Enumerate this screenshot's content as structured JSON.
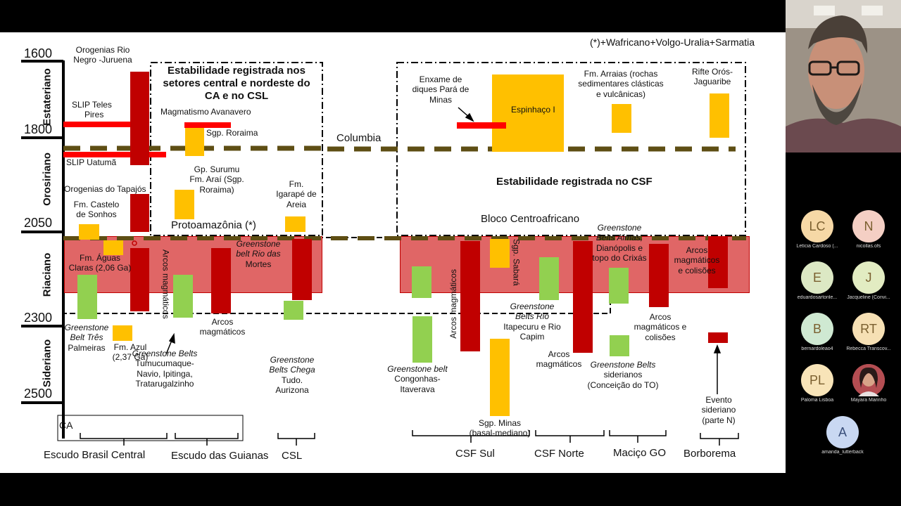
{
  "slide": {
    "ages": [
      "1600",
      "1800",
      "2050",
      "2300",
      "2500"
    ],
    "periods": [
      "Estateriano",
      "Orosiriano",
      "Riaciano",
      "Sideriano"
    ],
    "note": "(*)+Wafricano+Volgo-Uralia+Sarmatia",
    "stability_ca_line1": "Estabilidade registrada nos",
    "stability_ca_line2": "setores central e nordeste do",
    "stability_ca_line3": "CA e no CSL",
    "stability_csf": "Estabilidade registrada no CSF",
    "columbia": "Columbia",
    "protoamazonia": "Protoamazônia (*)",
    "bloco": "Bloco Centroafricano",
    "labels": {
      "orogenias_rio_negro": [
        "Orogenias Rio",
        "Negro -Juruena"
      ],
      "slip_teles_pires": [
        "SLIP Teles",
        "Pires"
      ],
      "magmatismo_avanavero": "Magmatismo Avanavero",
      "sgp_roraima": "Sgp. Roraima",
      "slip_uatuma": "SLIP Uatumã",
      "gp_surumu": [
        "Gp. Surumu",
        "Fm. Araí (Sgp.",
        "Roraima)"
      ],
      "orogenias_tapajos": "Orogenias do Tapajós",
      "fm_castelo": [
        "Fm. Castelo",
        "de Sonhos"
      ],
      "fm_igarape": [
        "Fm.",
        "Igarapé de",
        "Areia"
      ],
      "fm_aguas_claras": [
        "Fm. Águas",
        "Claras (2,06 Ga)"
      ],
      "arcos_magmaticos_vertical": "Arcos magmáticos",
      "greenstone_rio_mortes": [
        "Greenstone",
        "belt Rio das",
        "Mortes"
      ],
      "arcos_magmaticos_1": [
        "Arcos",
        "magmáticos"
      ],
      "greenstone_tres_palmeiras": [
        "Greenstone",
        "Belt Três",
        "Palmeiras"
      ],
      "fm_azul": [
        "Fm. Azul",
        "(2,37 Ga)"
      ],
      "greenstone_belts_tumucumaque": [
        "Greenstone Belts",
        "Tumucumaque-",
        "Navio, Ipitinga,",
        "Tratarugalzinho"
      ],
      "greenstone_chega_tudo": [
        "Greenstone",
        "Belts Chega",
        "Tudo.",
        "Aurizona"
      ],
      "enxame_diques": [
        "Enxame de",
        "diques Pará de",
        "Minas"
      ],
      "espinhaco": "Espinhaço I",
      "fm_arraias": [
        "Fm. Arraias (rochas",
        "sedimentares clásticas",
        "e vulcânicas)"
      ],
      "rifte_oros": [
        "Rifte Orós-",
        "Jaguaribe"
      ],
      "arcos_magmaticos_csf_vertical": "Arcos magmáticos",
      "sgp_sabara_vertical": "Sgp. Sabará",
      "greenstone_almas": [
        "Greenstone",
        "Belts Almas,",
        "Dianópolis e",
        "topo do Crixás"
      ],
      "arcos_colisoes_1": [
        "Arcos",
        "magmáticos",
        "e colisões"
      ],
      "greenstone_itapecuru": [
        "Greenstone",
        "Belts Rio",
        "Itapecuru e Rio",
        "Capim"
      ],
      "arcos_magmaticos_2": [
        "Arcos",
        "magmáticos"
      ],
      "arcos_colisoes_2": [
        "Arcos",
        "magmáticos  e",
        "colisões"
      ],
      "greenstone_congonhas": [
        "Greenstone belt",
        "Congonhas-",
        "Itaverava"
      ],
      "greenstone_siderianos": [
        "Greenstone Belts",
        "siderianos",
        "(Conceição do TO)"
      ],
      "sgp_minas": [
        "Sgp. Minas",
        "(basal-mediano)"
      ],
      "evento_sideriano": [
        "Evento",
        "sideriano",
        "(parte N)"
      ],
      "ca_box": "CA"
    },
    "regions": [
      "Escudo Brasil Central",
      "Escudo das Guianas",
      "CSL",
      "CSF Sul",
      "CSF Norte",
      "Maciço GO",
      "Borborema"
    ],
    "colors": {
      "yellow": "#ffc000",
      "darkred": "#c00000",
      "green": "#92d050",
      "red": "#ff0000",
      "pink": "#e06666",
      "dashline": "#5e4e14"
    }
  },
  "participants": [
    {
      "initials": "LC",
      "name": "Letícia Cardoso (...",
      "color": "#f6d8a6"
    },
    {
      "initials": "N",
      "name": "nicollas.ofs",
      "color": "#f4cfc4"
    },
    {
      "initials": "E",
      "name": "eduardosartorile...",
      "color": "#dce8c4"
    },
    {
      "initials": "J",
      "name": "Jacqueline (Convi...",
      "color": "#e2ecc2"
    },
    {
      "initials": "B",
      "name": "bernardoleao4",
      "color": "#cfe9d2"
    },
    {
      "initials": "RT",
      "name": "Rebecca Transcov...",
      "color": "#f6e0b4"
    },
    {
      "initials": "PL",
      "name": "Paloma Lisboa",
      "color": "#f8e4b8"
    },
    {
      "initials": "",
      "name": "Mayara Marinho",
      "color": "#c86a68",
      "photo": "avatar-photo"
    },
    {
      "initials": "A",
      "name": "amanda_lutterback",
      "color": "#c9d8f2"
    }
  ]
}
